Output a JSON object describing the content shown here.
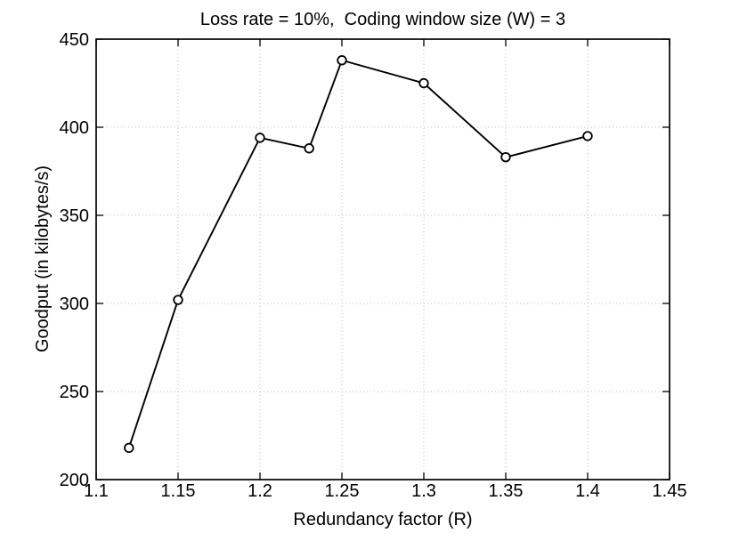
{
  "chart_data": {
    "type": "line",
    "title": "Loss rate = 10%,  Coding window size (W) = 3",
    "xlabel": "Redundancy factor (R)",
    "ylabel": "Goodput (in kilobytes/s)",
    "x": [
      1.12,
      1.15,
      1.2,
      1.23,
      1.25,
      1.3,
      1.35,
      1.4
    ],
    "y": [
      218,
      302,
      394,
      388,
      438,
      425,
      383,
      395
    ],
    "xlim": [
      1.1,
      1.45
    ],
    "ylim": [
      200,
      450
    ],
    "xticks": [
      1.1,
      1.15,
      1.2,
      1.25,
      1.3,
      1.35,
      1.4,
      1.45
    ],
    "xtick_labels": [
      "1.1",
      "1.15",
      "1.2",
      "1.25",
      "1.3",
      "1.35",
      "1.4",
      "1.45"
    ],
    "yticks": [
      200,
      250,
      300,
      350,
      400,
      450
    ],
    "ytick_labels": [
      "200",
      "250",
      "300",
      "350",
      "400",
      "450"
    ],
    "grid": true,
    "legend": null,
    "line_color": "#000000",
    "marker": "open-circle",
    "marker_fill": "#ffffff",
    "grid_color": "#bcbcbc",
    "axis_color": "#000000",
    "background_color": "#ffffff"
  }
}
